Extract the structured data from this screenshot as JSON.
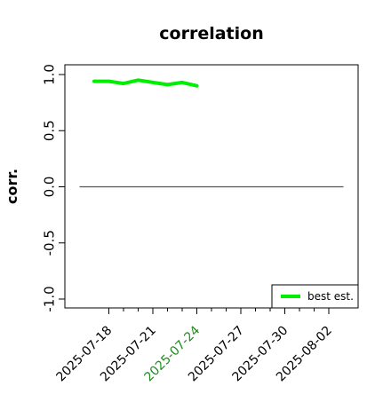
{
  "chart_data": {
    "type": "line",
    "title": "correlation",
    "xlabel": "",
    "ylabel": "corr.",
    "ylim": [
      -1.0,
      1.0
    ],
    "xlim": [
      "2025-07-15",
      "2025-08-04"
    ],
    "y_ticks": [
      -1.0,
      -0.5,
      0.0,
      0.5,
      1.0
    ],
    "y_tick_labels": [
      "-1.0",
      "-0.5",
      "0.0",
      "0.5",
      "1.0"
    ],
    "x_ticks": [
      "2025-07-18",
      "2025-07-19",
      "2025-07-20",
      "2025-07-21",
      "2025-07-22",
      "2025-07-23",
      "2025-07-24",
      "2025-07-25",
      "2025-07-26",
      "2025-07-27",
      "2025-07-28",
      "2025-07-29",
      "2025-07-30",
      "2025-07-31",
      "2025-08-01",
      "2025-08-02"
    ],
    "x_tick_labels": [
      "2025-07-18",
      "",
      "",
      "2025-07-21",
      "",
      "",
      "2025-07-24",
      "",
      "",
      "2025-07-27",
      "",
      "",
      "2025-07-30",
      "",
      "",
      "2025-08-02"
    ],
    "x_major_ticks": [
      "2025-07-18",
      "2025-07-21",
      "2025-07-24",
      "2025-07-27",
      "2025-07-30",
      "2025-08-02"
    ],
    "highlighted_x_label": "2025-07-24",
    "highlight_color": "#228B22",
    "grid": false,
    "legend_position": "bottom-right",
    "reference_line": {
      "y": 0.0,
      "color": "#555555",
      "from": "2025-07-16",
      "to": "2025-08-03"
    },
    "series": [
      {
        "name": "best est.",
        "color": "#00ee00",
        "x": [
          "2025-07-17",
          "2025-07-18",
          "2025-07-19",
          "2025-07-20",
          "2025-07-21",
          "2025-07-22",
          "2025-07-23",
          "2025-07-24"
        ],
        "values": [
          0.94,
          0.94,
          0.92,
          0.95,
          0.93,
          0.91,
          0.93,
          0.9
        ]
      }
    ]
  }
}
